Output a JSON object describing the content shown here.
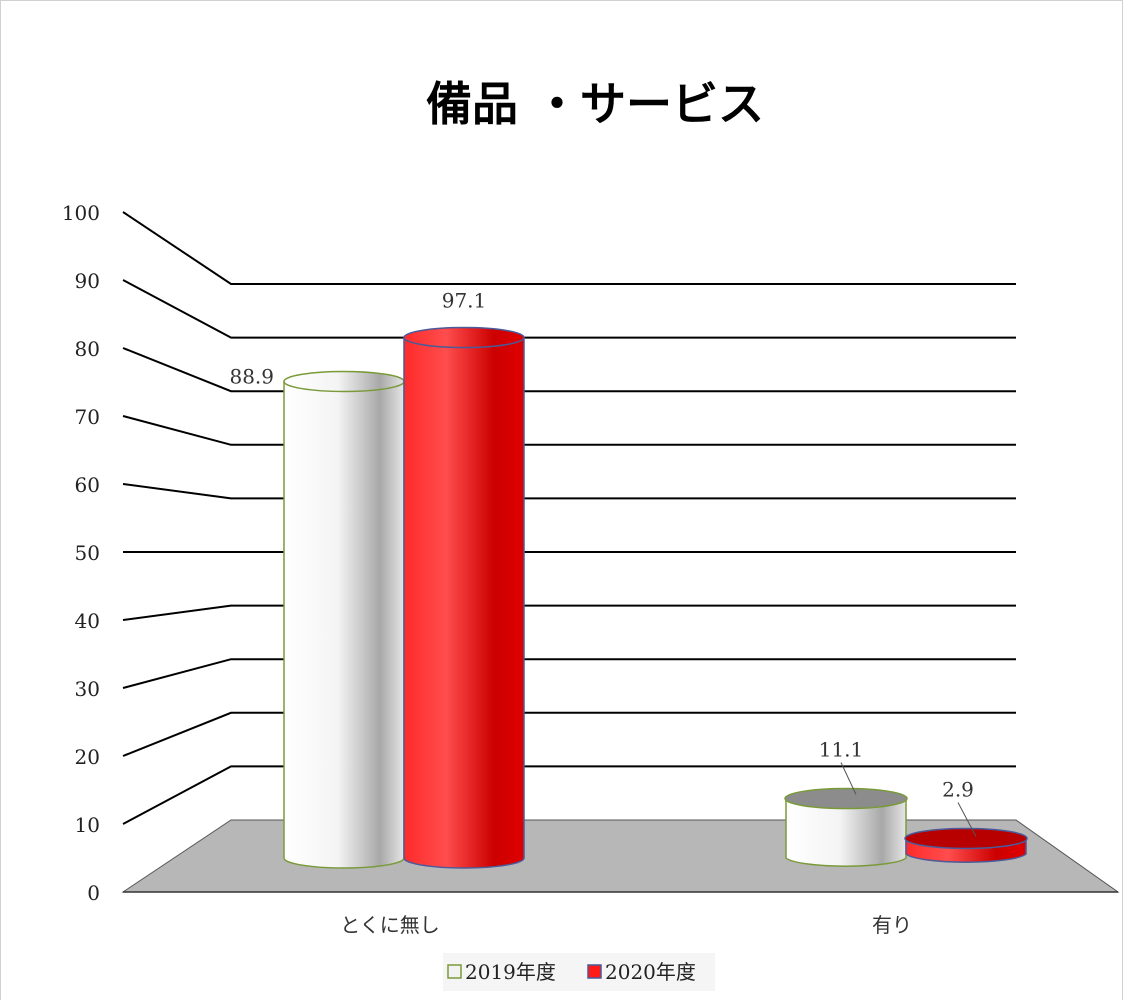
{
  "chart_data": {
    "type": "bar",
    "title": "備品 ・サービス",
    "categories": [
      "とくに無し",
      "有り"
    ],
    "series": [
      {
        "name": "2019年度",
        "values": [
          88.9,
          11.1
        ],
        "color": "#f2f2f2",
        "edge": "#7a9a3a",
        "top": "#8c8c8c"
      },
      {
        "name": "2020年度",
        "values": [
          97.1,
          2.9
        ],
        "color": "#ff1a1a",
        "edge": "#4a5a9a",
        "top": "#b80000"
      }
    ],
    "ylim": [
      0,
      100
    ],
    "yticks": [
      "0",
      "10",
      "20",
      "30",
      "40",
      "50",
      "60",
      "70",
      "80",
      "90",
      "100"
    ],
    "data_labels": [
      [
        "88.9",
        "11.1"
      ],
      [
        "97.1",
        "2.9"
      ]
    ],
    "grid": true,
    "legend_position": "bottom",
    "floor_color": "#b7b7b7"
  }
}
